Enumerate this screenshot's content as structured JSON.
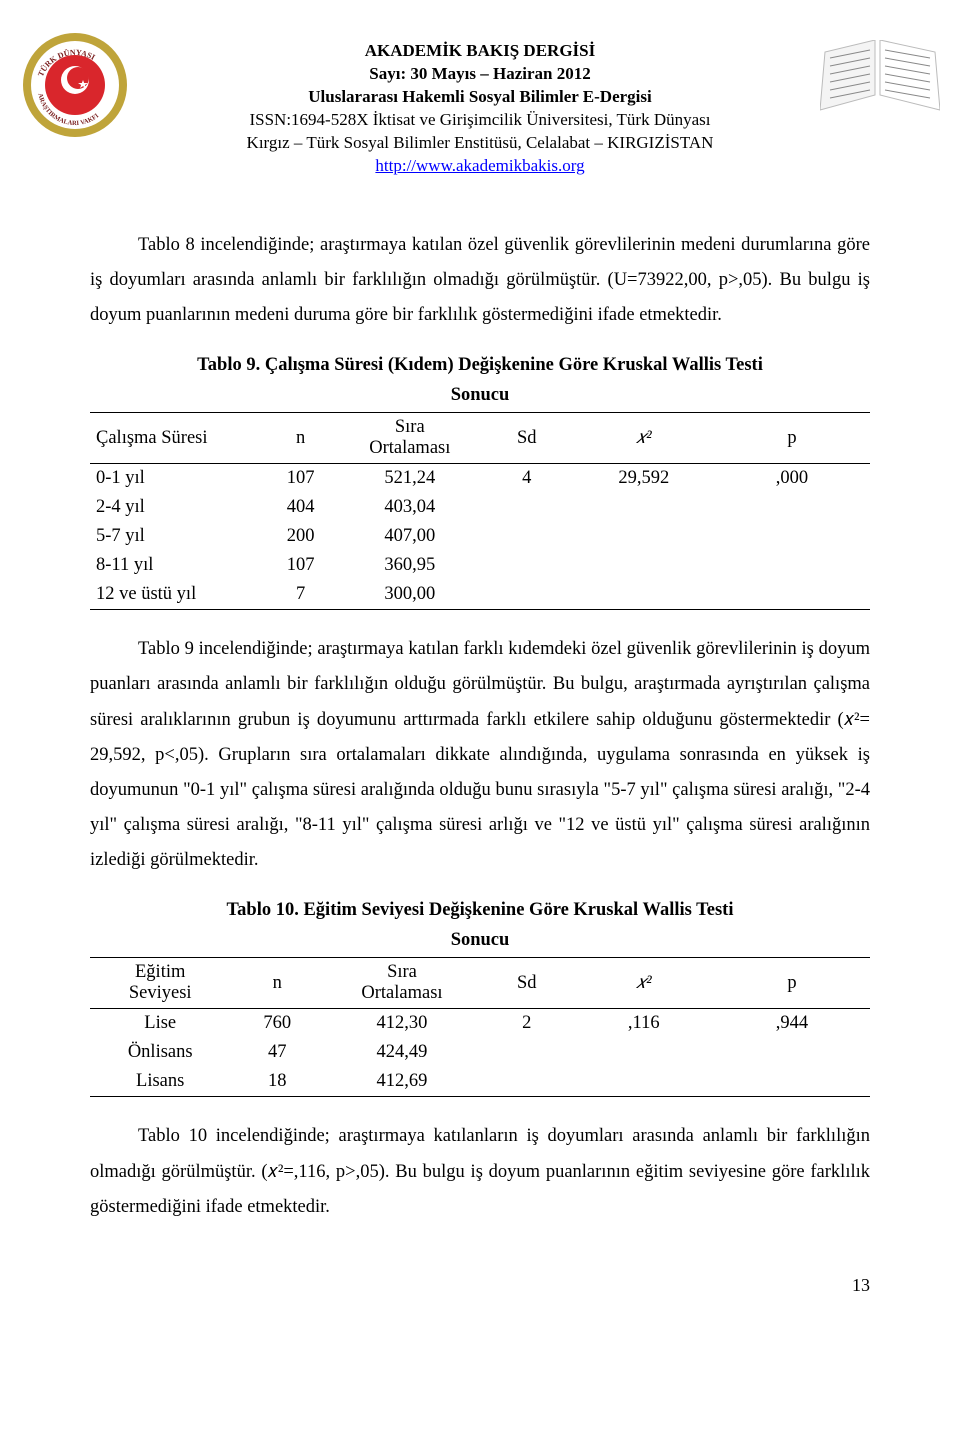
{
  "header": {
    "line1": "AKADEMİK BAKIŞ DERGİSİ",
    "line2": "Sayı: 30       Mayıs – Haziran 2012",
    "line3": "Uluslararası Hakemli Sosyal Bilimler E-Dergisi",
    "line4": "ISSN:1694-528X İktisat ve Girişimcilik Üniversitesi, Türk Dünyası",
    "line5": "Kırgız – Türk Sosyal Bilimler Enstitüsü, Celalabat – KIRGIZİSTAN",
    "link": "http://www.akademikbakis.org"
  },
  "logo_left": {
    "ring_outer_color": "#bfa43a",
    "ring_inner_color": "#ffffff",
    "center_color": "#d9262c",
    "star_color": "#ffffff",
    "text_color": "#7a1f1f",
    "top_text": "TÜRK DÜNYASI",
    "bottom_text": "ARAŞTIRMALARI VAKFI"
  },
  "logo_right": {
    "page_color": "#f4f4f4",
    "edge_color": "#bbbbbb"
  },
  "para1": "Tablo 8 incelendiğinde; araştırmaya katılan özel güvenlik görevlilerinin medeni durumlarına göre iş doyumları arasında anlamlı bir farklılığın olmadığı görülmüştür. (U=73922,00, p>,05). Bu bulgu iş doyum puanlarının medeni duruma göre bir farklılık göstermediğini ifade etmektedir.",
  "table9": {
    "title_l1": "Tablo 9. Çalışma Süresi (Kıdem) Değişkenine Göre Kruskal Wallis Testi",
    "title_l2": "Sonucu",
    "headers": {
      "c0": "Çalışma Süresi",
      "c1": "n",
      "c2_l1": "Sıra",
      "c2_l2": "Ortalaması",
      "c3": "Sd",
      "c4": "𝑥²",
      "c5": "p"
    },
    "rows": [
      {
        "label": "0-1 yıl",
        "n": "107",
        "mean": "521,24",
        "sd": "4",
        "chi": "29,592",
        "p": ",000"
      },
      {
        "label": "2-4 yıl",
        "n": "404",
        "mean": "403,04",
        "sd": "",
        "chi": "",
        "p": ""
      },
      {
        "label": "5-7 yıl",
        "n": "200",
        "mean": "407,00",
        "sd": "",
        "chi": "",
        "p": ""
      },
      {
        "label": "8-11 yıl",
        "n": "107",
        "mean": "360,95",
        "sd": "",
        "chi": "",
        "p": ""
      },
      {
        "label": "12 ve üstü yıl",
        "n": "7",
        "mean": "300,00",
        "sd": "",
        "chi": "",
        "p": ""
      }
    ],
    "col_widths": [
      "22%",
      "10%",
      "18%",
      "12%",
      "18%",
      "20%"
    ]
  },
  "para2": "Tablo 9 incelendiğinde; araştırmaya katılan farklı kıdemdeki özel güvenlik görevlilerinin iş doyum puanları arasında anlamlı bir farklılığın olduğu görülmüştür. Bu bulgu, araştırmada ayrıştırılan çalışma süresi aralıklarının grubun iş doyumunu arttırmada farklı etkilere sahip olduğunu göstermektedir (𝑥²= 29,592, p<,05). Grupların sıra ortalamaları dikkate alındığında, uygulama sonrasında en yüksek iş doyumunun \"0-1 yıl\" çalışma süresi aralığında olduğu bunu sırasıyla  \"5-7 yıl\" çalışma süresi aralığı, \"2-4 yıl\" çalışma süresi aralığı, \"8-11 yıl\" çalışma süresi arlığı ve \"12 ve üstü yıl\" çalışma süresi aralığının izlediği görülmektedir.",
  "table10": {
    "title_l1": "Tablo 10. Eğitim Seviyesi Değişkenine Göre Kruskal Wallis Testi",
    "title_l2": "Sonucu",
    "headers": {
      "c0_l1": "Eğitim",
      "c0_l2": "Seviyesi",
      "c1": "n",
      "c2_l1": "Sıra",
      "c2_l2": "Ortalaması",
      "c3": "Sd",
      "c4": "𝑥²",
      "c5": "p"
    },
    "rows": [
      {
        "label": "Lise",
        "n": "760",
        "mean": "412,30",
        "sd": "2",
        "chi": ",116",
        "p": ",944"
      },
      {
        "label": "Önlisans",
        "n": "47",
        "mean": "424,49",
        "sd": "",
        "chi": "",
        "p": ""
      },
      {
        "label": "Lisans",
        "n": "18",
        "mean": "412,69",
        "sd": "",
        "chi": "",
        "p": ""
      }
    ],
    "col_widths": [
      "18%",
      "12%",
      "20%",
      "12%",
      "18%",
      "20%"
    ]
  },
  "para3": "Tablo 10 incelendiğinde; araştırmaya katılanların iş doyumları arasında anlamlı bir farklılığın olmadığı görülmüştür. (𝑥²=,116, p>,05). Bu bulgu iş doyum puanlarının eğitim seviyesine göre farklılık göstermediğini ifade etmektedir.",
  "page_number": "13",
  "colors": {
    "text": "#000000",
    "link": "#0000ff",
    "rule": "#000000",
    "background": "#ffffff"
  },
  "typography": {
    "body_font": "Times New Roman",
    "body_size_pt": 14,
    "header_size_pt": 13,
    "line_height": 1.9
  }
}
